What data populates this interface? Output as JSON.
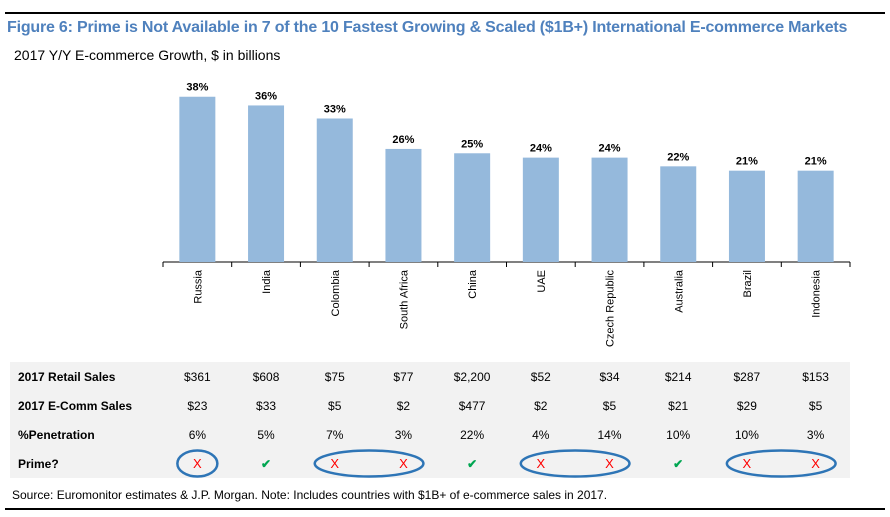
{
  "title": "Figure 6: Prime is Not Available in 7 of the 10 Fastest Growing & Scaled ($1B+) International E-commerce Markets",
  "subtitle": "2017 Y/Y E-commerce Growth, $ in billions",
  "chart_data": {
    "type": "bar",
    "categories": [
      "Russia",
      "India",
      "Colombia",
      "South Africa",
      "China",
      "UAE",
      "Czech Republic",
      "Australia",
      "Brazil",
      "Indonesia"
    ],
    "values": [
      38,
      36,
      33,
      26,
      25,
      24,
      24,
      22,
      21,
      21
    ],
    "data_labels": [
      "38%",
      "36%",
      "33%",
      "26%",
      "25%",
      "24%",
      "24%",
      "22%",
      "21%",
      "21%"
    ],
    "ylim": [
      0,
      43
    ],
    "bar_color": "#95b9dc"
  },
  "table": {
    "rows": [
      {
        "label": "2017 Retail Sales",
        "values": [
          "$361",
          "$608",
          "$75",
          "$77",
          "$2,200",
          "$52",
          "$34",
          "$214",
          "$287",
          "$153"
        ]
      },
      {
        "label": "2017 E-Comm Sales",
        "values": [
          "$23",
          "$33",
          "$5",
          "$2",
          "$477",
          "$2",
          "$5",
          "$21",
          "$29",
          "$5"
        ]
      },
      {
        "label": "%Penetration",
        "values": [
          "6%",
          "5%",
          "7%",
          "3%",
          "22%",
          "4%",
          "14%",
          "10%",
          "10%",
          "3%"
        ]
      }
    ],
    "prime": {
      "label": "Prime?",
      "values": [
        false,
        true,
        false,
        false,
        true,
        false,
        false,
        true,
        false,
        false
      ],
      "x_glyph": "X",
      "check_glyph": "✔",
      "x_color": "#ff0000",
      "check_color": "#00a651",
      "circle_color": "#2e75b6"
    }
  },
  "source": "Source: Euromonitor estimates & J.P. Morgan. Note: Includes countries with $1B+ of e-commerce sales in 2017."
}
